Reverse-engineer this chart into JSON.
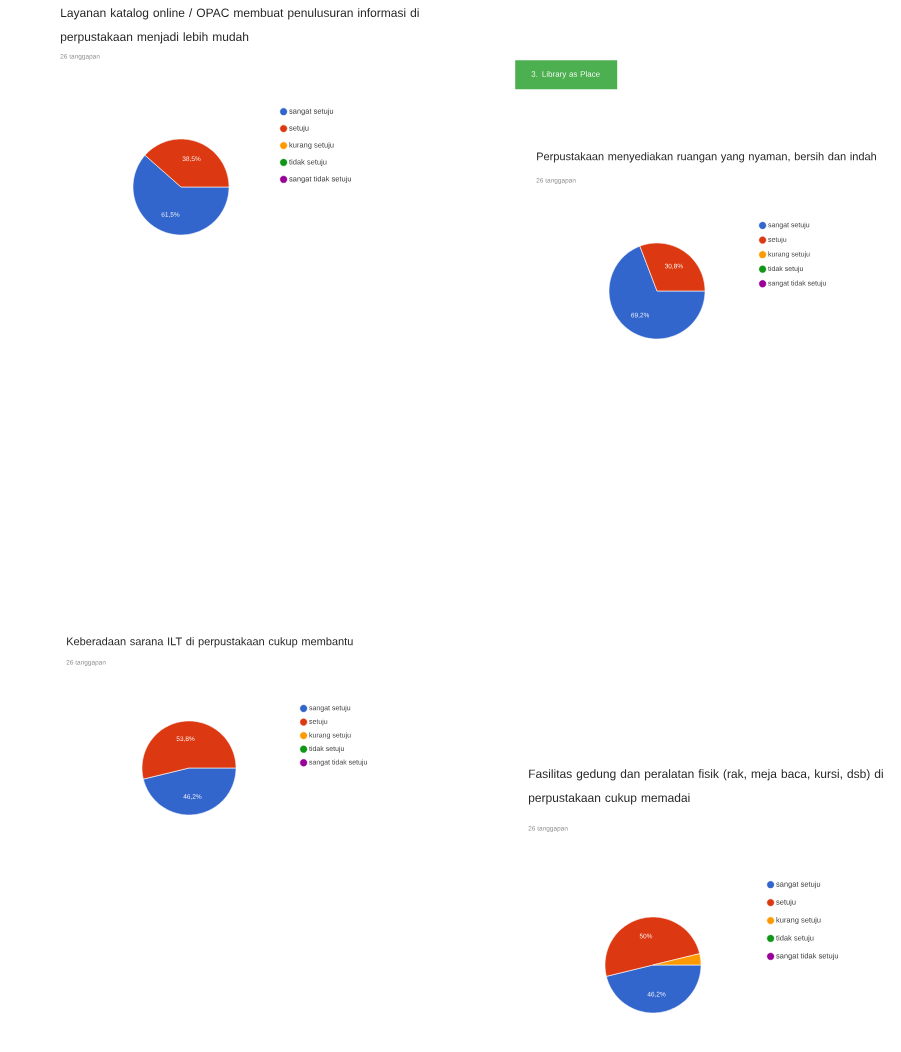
{
  "chart_data": [
    {
      "type": "pie",
      "title": "Layanan katalog online / OPAC membuat penulusuran informasi di perpustakaan menjadi lebih mudah",
      "subtitle": "26 tanggapan",
      "categories": [
        "sangat setuju",
        "setuju",
        "kurang setuju",
        "tidak setuju",
        "sangat tidak setuju"
      ],
      "values": [
        61.5,
        38.5,
        0,
        0,
        0
      ],
      "value_labels": [
        "61,5%",
        "38,5%",
        null,
        null,
        null
      ],
      "colors": [
        "#3366cc",
        "#dc3912",
        "#ff9900",
        "#109618",
        "#990099"
      ],
      "legend": "right"
    },
    {
      "type": "pie",
      "title": "Perpustakaan menyediakan ruangan yang nyaman, bersih dan indah",
      "subtitle": "26 tanggapan",
      "annotations": [
        "3. Library as Place"
      ],
      "categories": [
        "sangat setuju",
        "setuju",
        "kurang setuju",
        "tidak setuju",
        "sangat tidak setuju"
      ],
      "values": [
        69.2,
        30.8,
        0,
        0,
        0
      ],
      "value_labels": [
        "69,2%",
        "30,8%",
        null,
        null,
        null
      ],
      "colors": [
        "#3366cc",
        "#dc3912",
        "#ff9900",
        "#109618",
        "#990099"
      ],
      "legend": "right"
    },
    {
      "type": "pie",
      "title": "Keberadaan sarana ILT di perpustakaan cukup membantu",
      "subtitle": "26 tanggapan",
      "categories": [
        "sangat setuju",
        "setuju",
        "kurang setuju",
        "tidak setuju",
        "sangat tidak setuju"
      ],
      "values": [
        46.2,
        53.8,
        0,
        0,
        0
      ],
      "value_labels": [
        "46,2%",
        "53,8%",
        null,
        null,
        null
      ],
      "colors": [
        "#3366cc",
        "#dc3912",
        "#ff9900",
        "#109618",
        "#990099"
      ],
      "legend": "right"
    },
    {
      "type": "pie",
      "title": "Fasilitas gedung dan peralatan fisik (rak, meja baca, kursi, dsb) di perpustakaan cukup memadai",
      "subtitle": "26 tanggapan",
      "categories": [
        "sangat setuju",
        "setuju",
        "kurang setuju",
        "tidak setuju",
        "sangat tidak setuju"
      ],
      "values": [
        46.2,
        50,
        3.8,
        0,
        0
      ],
      "value_labels": [
        "46,2%",
        "50%",
        null,
        null,
        null
      ],
      "colors": [
        "#3366cc",
        "#dc3912",
        "#ff9900",
        "#109618",
        "#990099"
      ],
      "legend": "right"
    }
  ]
}
